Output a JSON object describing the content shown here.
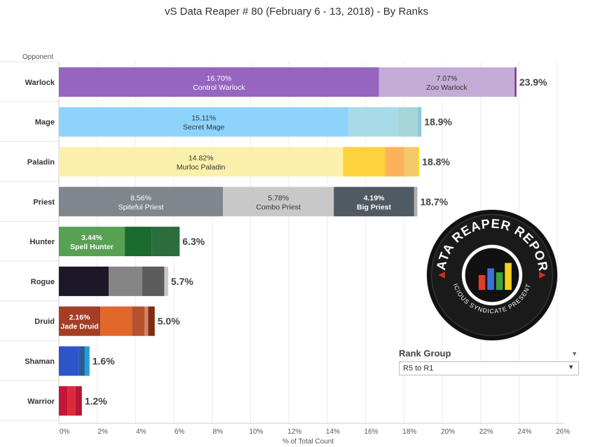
{
  "title": "vS Data Reaper #  80 (February 6 - 13, 2018) - By Ranks",
  "logo": {
    "text_top": "DATA REAPER REPORT",
    "text_bottom": "VICIOUS SYNDICATE PRESENTS"
  },
  "rank_group": {
    "label": "Rank Group",
    "value": "R5 to R1"
  },
  "chart_data": {
    "type": "bar",
    "orientation": "horizontal",
    "stacked": true,
    "title": "vS Data Reaper #  80 (February 6 - 13, 2018) - By Ranks",
    "row_header": "Opponent",
    "xlabel": "% of Total Count",
    "xlim": [
      0,
      26
    ],
    "xticks": [
      "0%",
      "2%",
      "4%",
      "6%",
      "8%",
      "10%",
      "12%",
      "14%",
      "16%",
      "18%",
      "20%",
      "22%",
      "24%",
      "26%"
    ],
    "grid": true,
    "categories": [
      "Warlock",
      "Mage",
      "Paladin",
      "Priest",
      "Hunter",
      "Rogue",
      "Druid",
      "Shaman",
      "Warrior"
    ],
    "totals": [
      "23.9%",
      "18.9%",
      "18.8%",
      "18.7%",
      "6.3%",
      "5.7%",
      "5.0%",
      "1.6%",
      "1.2%"
    ],
    "rows": [
      {
        "category": "Warlock",
        "segments": [
          {
            "value": 16.7,
            "color": "#9565c0",
            "pct": "16.70%",
            "name": "Control Warlock",
            "text_color": "#ffffff"
          },
          {
            "value": 7.07,
            "color": "#c5acd6",
            "pct": "7.07%",
            "name": "Zoo Warlock",
            "text_color": "#333333"
          },
          {
            "value": 0.1,
            "color": "#7d3f9a"
          }
        ]
      },
      {
        "category": "Mage",
        "segments": [
          {
            "value": 15.11,
            "color": "#8ed3fb",
            "pct": "15.11%",
            "name": "Secret Mage",
            "text_color": "#333333"
          },
          {
            "value": 2.6,
            "color": "#a7dbe8"
          },
          {
            "value": 1.0,
            "color": "#a5d5d8"
          },
          {
            "value": 0.2,
            "color": "#8ac8d8"
          }
        ]
      },
      {
        "category": "Paladin",
        "segments": [
          {
            "value": 14.82,
            "color": "#fbf0ab",
            "pct": "14.82%",
            "name": "Murloc Paladin",
            "text_color": "#333333"
          },
          {
            "value": 2.2,
            "color": "#fdd23c"
          },
          {
            "value": 1.0,
            "color": "#fbb25a"
          },
          {
            "value": 0.7,
            "color": "#f5c96a"
          },
          {
            "value": 0.08,
            "color": "#f2e020"
          }
        ]
      },
      {
        "category": "Priest",
        "segments": [
          {
            "value": 8.56,
            "color": "#7e878c",
            "pct": "8.56%",
            "name": "Spiteful Priest",
            "text_color": "#ffffff"
          },
          {
            "value": 5.78,
            "color": "#c8c8c8",
            "pct": "5.78%",
            "name": "Combo Priest",
            "text_color": "#333333"
          },
          {
            "value": 4.19,
            "color": "#505a63",
            "pct": "4.19%",
            "name": "Big Priest",
            "text_color": "#ffffff"
          },
          {
            "value": 0.17,
            "color": "#b0b0b0"
          }
        ]
      },
      {
        "category": "Hunter",
        "segments": [
          {
            "value": 3.44,
            "color": "#58a054",
            "pct": "3.44%",
            "name": "Spell Hunter",
            "text_color": "#ffffff"
          },
          {
            "value": 1.4,
            "color": "#1b6b2f"
          },
          {
            "value": 1.46,
            "color": "#2b6d3c"
          }
        ]
      },
      {
        "category": "Rogue",
        "segments": [
          {
            "value": 2.6,
            "color": "#1d1828"
          },
          {
            "value": 1.75,
            "color": "#858585"
          },
          {
            "value": 1.15,
            "color": "#5c5c5c"
          },
          {
            "value": 0.2,
            "color": "#c8c8c8"
          }
        ]
      },
      {
        "category": "Druid",
        "segments": [
          {
            "value": 2.16,
            "color": "#a43e25",
            "pct": "2.16%",
            "name": "Jade Druid",
            "text_color": "#ffffff"
          },
          {
            "value": 1.65,
            "color": "#e2672b"
          },
          {
            "value": 0.65,
            "color": "#b4522d"
          },
          {
            "value": 0.2,
            "color": "#d48262"
          },
          {
            "value": 0.34,
            "color": "#7e2c14"
          }
        ]
      },
      {
        "category": "Shaman",
        "segments": [
          {
            "value": 1.05,
            "color": "#2b55c8"
          },
          {
            "value": 0.3,
            "color": "#2a5b96"
          },
          {
            "value": 0.25,
            "color": "#1ea0d6"
          }
        ]
      },
      {
        "category": "Warrior",
        "segments": [
          {
            "value": 0.45,
            "color": "#c4163a"
          },
          {
            "value": 0.4,
            "color": "#dd2a3a"
          },
          {
            "value": 0.35,
            "color": "#b81634"
          }
        ]
      }
    ]
  }
}
